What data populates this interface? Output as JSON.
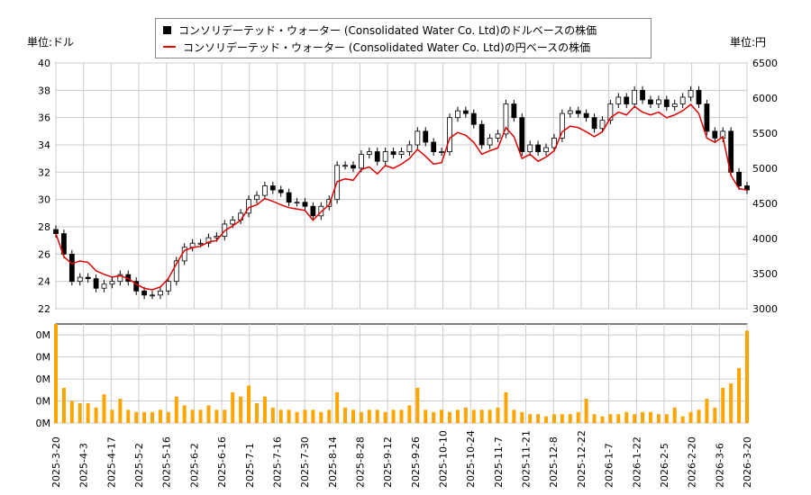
{
  "chart_data": [
    {
      "type": "candlestick+line",
      "legend": {
        "position": "top-center",
        "entries": [
          "コンソリデーテッド・ウォーター (Consolidated Water Co. Ltd)のドルベースの株価",
          "コンソリデーテッド・ウォーター (Consolidated Water Co. Ltd)の円ベースの株価"
        ]
      },
      "left_unit": "単位:ドル",
      "right_unit": "単位:円",
      "ylim_left": [
        22,
        40
      ],
      "ylim_right": [
        3000,
        6500
      ],
      "yticks_left": [
        "22",
        "24",
        "26",
        "28",
        "30",
        "32",
        "34",
        "36",
        "38",
        "40"
      ],
      "yticks_right": [
        "3000",
        "3500",
        "4000",
        "4500",
        "5000",
        "5500",
        "6000",
        "6500"
      ],
      "grid": true,
      "colors": {
        "usd": "#000000",
        "jpy": "#e00000",
        "volume": "#ffa500"
      },
      "x_range": [
        "2025-3-20",
        "2026-3-20"
      ],
      "xticks": [
        "2025-3-20",
        "2025-4-3",
        "2025-4-17",
        "2025-5-2",
        "2025-5-16",
        "2025-6-2",
        "2025-6-16",
        "2025-7-1",
        "2025-7-16",
        "2025-7-30",
        "2025-8-14",
        "2025-8-28",
        "2025-9-12",
        "2025-9-26",
        "2025-10-10",
        "2025-10-24",
        "2025-11-7",
        "2025-11-21",
        "2025-12-8",
        "2025-12-22",
        "2026-1-7",
        "2026-1-22",
        "2026-2-5",
        "2026-2-20",
        "2026-3-6",
        "2026-3-20"
      ],
      "usd_close": [
        27.5,
        26,
        24,
        24.3,
        24.2,
        23.5,
        23.8,
        24,
        24.5,
        24,
        23.3,
        23,
        23,
        23.3,
        24,
        25.5,
        26.5,
        26.8,
        26.8,
        27.2,
        27.3,
        28.2,
        28.5,
        29,
        30,
        30.3,
        31,
        30.7,
        30.5,
        29.8,
        29.8,
        29.5,
        28.8,
        29.5,
        30,
        32.5,
        32.5,
        32.3,
        33.3,
        33.5,
        32.8,
        33.5,
        33.3,
        33.5,
        34,
        35,
        34.2,
        33.5,
        33.5,
        36,
        36.5,
        36.3,
        35.5,
        34,
        34.5,
        34.8,
        37,
        36,
        33.5,
        34,
        33.5,
        33.8,
        34.5,
        36.3,
        36.5,
        36.3,
        36,
        35.2,
        35.8,
        37,
        37.5,
        37,
        38,
        37.3,
        37,
        37.3,
        36.8,
        37,
        37.5,
        38,
        37,
        35,
        34.5,
        35,
        32,
        31,
        30.7
      ],
      "jpy_close": [
        4070,
        3740,
        3640,
        3680,
        3660,
        3540,
        3490,
        3450,
        3470,
        3430,
        3350,
        3290,
        3270,
        3310,
        3430,
        3640,
        3830,
        3870,
        3890,
        3950,
        3970,
        4110,
        4180,
        4260,
        4440,
        4480,
        4570,
        4530,
        4480,
        4440,
        4420,
        4400,
        4260,
        4380,
        4480,
        4810,
        4850,
        4830,
        4980,
        5020,
        4920,
        5040,
        5000,
        5060,
        5140,
        5270,
        5170,
        5060,
        5080,
        5430,
        5510,
        5470,
        5370,
        5200,
        5250,
        5290,
        5580,
        5450,
        5140,
        5200,
        5100,
        5160,
        5250,
        5520,
        5600,
        5580,
        5520,
        5450,
        5520,
        5720,
        5800,
        5760,
        5880,
        5800,
        5760,
        5800,
        5720,
        5760,
        5820,
        5910,
        5780,
        5430,
        5370,
        5450,
        4900,
        4710,
        4690
      ]
    },
    {
      "type": "bar",
      "yticks": [
        "0M",
        "0M",
        "0M",
        "0M",
        "0M"
      ],
      "ylim": [
        0,
        450000
      ],
      "volume": [
        450000,
        160000,
        100000,
        90000,
        90000,
        70000,
        130000,
        60000,
        110000,
        60000,
        50000,
        50000,
        50000,
        60000,
        50000,
        120000,
        80000,
        60000,
        60000,
        80000,
        60000,
        60000,
        140000,
        120000,
        170000,
        90000,
        120000,
        70000,
        60000,
        60000,
        50000,
        60000,
        60000,
        50000,
        60000,
        140000,
        70000,
        60000,
        50000,
        60000,
        60000,
        50000,
        60000,
        60000,
        80000,
        160000,
        60000,
        50000,
        60000,
        50000,
        60000,
        70000,
        60000,
        60000,
        60000,
        70000,
        140000,
        60000,
        50000,
        40000,
        40000,
        30000,
        40000,
        40000,
        40000,
        50000,
        110000,
        40000,
        30000,
        40000,
        40000,
        50000,
        40000,
        50000,
        50000,
        40000,
        40000,
        70000,
        30000,
        50000,
        60000,
        110000,
        70000,
        160000,
        180000,
        250000,
        420000
      ]
    }
  ]
}
